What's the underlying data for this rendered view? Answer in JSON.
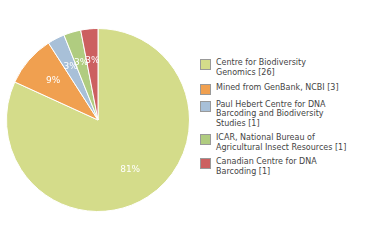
{
  "chart_data": {
    "type": "pie",
    "categories": [
      "Centre for Biodiversity\nGenomics [26]",
      "Mined from GenBank, NCBI [3]",
      "Paul Hebert Centre for DNA\nBarcoding and Biodiversity\nStudies [1]",
      "ICAR, National Bureau of\nAgricultural Insect Resources [1]",
      "Canadian Centre for DNA\nBarcoding [1]"
    ],
    "values": [
      81,
      9,
      3,
      3,
      3
    ],
    "value_labels": [
      "81%",
      "9%",
      "3%",
      "3%",
      "3%"
    ],
    "colors": [
      "#d4dc8a",
      "#f0a050",
      "#a8c0d8",
      "#b0cc80",
      "#cc6060"
    ],
    "data_labels": true,
    "legend": "right"
  }
}
